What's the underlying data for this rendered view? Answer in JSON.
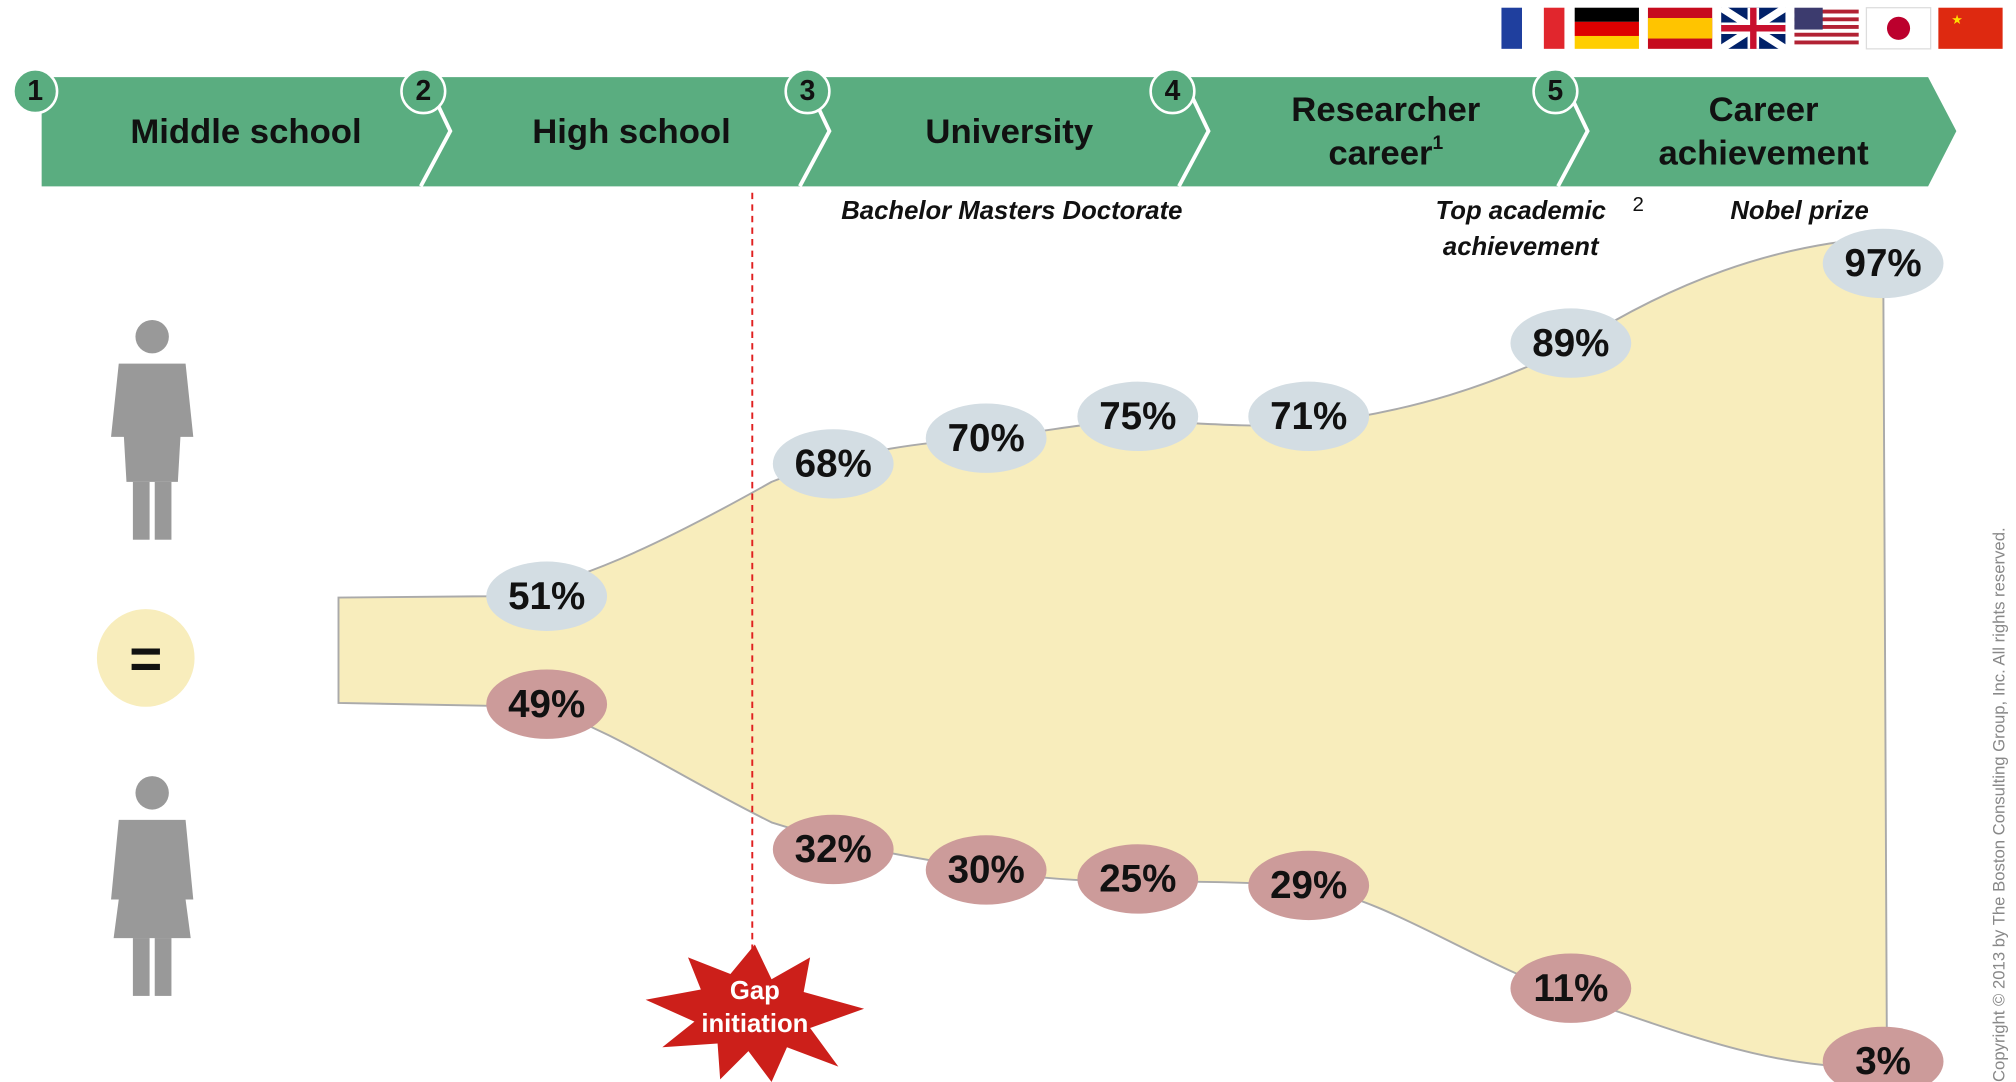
{
  "stages": [
    {
      "number": "1",
      "lines": [
        "Middle school"
      ]
    },
    {
      "number": "2",
      "lines": [
        "High school"
      ]
    },
    {
      "number": "3",
      "lines": [
        "University"
      ]
    },
    {
      "number": "4",
      "lines": [
        "Researcher",
        "career"
      ],
      "note": "1"
    },
    {
      "number": "5",
      "lines": [
        "Career",
        "achievement"
      ]
    }
  ],
  "sublabels": {
    "university": "Bachelor Masters Doctorate",
    "researcher": [
      "Top academic",
      "achievement"
    ],
    "researcher_note": "2",
    "career": "Nobel prize"
  },
  "men": [
    "51%",
    "68%",
    "70%",
    "75%",
    "71%",
    "89%",
    "97%"
  ],
  "women": [
    "49%",
    "32%",
    "30%",
    "25%",
    "29%",
    "11%",
    "3%"
  ],
  "equal": "=",
  "gap": [
    "Gap",
    "initiation"
  ],
  "copyright": "Copyright © 2013 by The Boston Consulting Group, Inc. All rights reserved."
}
